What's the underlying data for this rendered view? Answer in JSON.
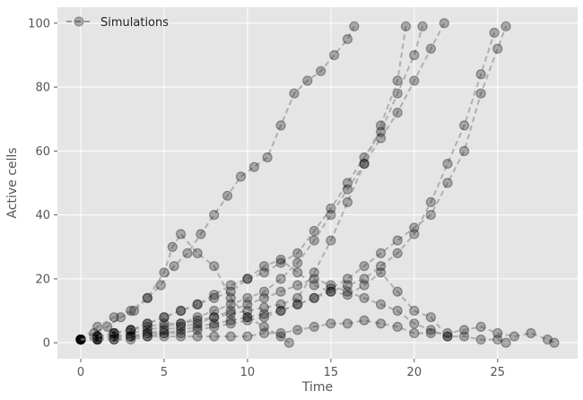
{
  "chart_data": {
    "type": "line",
    "xlabel": "Time",
    "ylabel": "Active cells",
    "xlim": [
      -1.4,
      29.8
    ],
    "ylim": [
      -5,
      105
    ],
    "xticks": [
      0,
      5,
      10,
      15,
      20,
      25
    ],
    "yticks": [
      0,
      20,
      40,
      60,
      80,
      100
    ],
    "grid": true,
    "legend": {
      "position": "top-left",
      "entries": [
        "Simulations"
      ]
    },
    "style": {
      "background": "#e5e5e5",
      "grid": "#ffffff",
      "marker": "#000000",
      "marker_opacity": 0.28,
      "line": "#999999"
    },
    "series": [
      {
        "name": "Simulations",
        "x": [
          0,
          0.8,
          1.6,
          2.4,
          3.2,
          4.0,
          4.8,
          5.6,
          6.4,
          7.2,
          8.0,
          8.8,
          9.6,
          10.4,
          11.2,
          12.0,
          12.8,
          13.6,
          14.4,
          15.2,
          16.0,
          16.4
        ],
        "y": [
          1,
          3,
          5,
          8,
          10,
          14,
          18,
          24,
          28,
          34,
          40,
          46,
          52,
          55,
          58,
          68,
          78,
          82,
          85,
          90,
          95,
          99
        ]
      },
      {
        "name": "",
        "x": [
          0,
          1,
          2,
          3,
          4,
          5,
          5.5,
          6,
          7,
          8,
          9,
          10,
          11,
          12,
          12.5
        ],
        "y": [
          1,
          5,
          8,
          10,
          14,
          22,
          30,
          34,
          28,
          24,
          14,
          8,
          5,
          2,
          0
        ]
      },
      {
        "name": "",
        "x": [
          0,
          1,
          2,
          3,
          4,
          5,
          6,
          7,
          8,
          9,
          10,
          11,
          12,
          13,
          14,
          15,
          16,
          17,
          18,
          19,
          20,
          20.5
        ],
        "y": [
          1,
          2,
          3,
          4,
          6,
          8,
          10,
          12,
          15,
          18,
          20,
          22,
          25,
          28,
          35,
          42,
          50,
          58,
          66,
          78,
          90,
          99
        ]
      },
      {
        "name": "",
        "x": [
          0,
          1,
          2,
          3,
          4,
          5,
          6,
          7,
          8,
          9,
          10,
          11,
          12,
          13,
          14,
          15,
          16,
          17,
          18,
          19,
          20,
          21,
          21.8
        ],
        "y": [
          1,
          2,
          2,
          3,
          4,
          5,
          6,
          8,
          10,
          12,
          14,
          16,
          20,
          25,
          32,
          40,
          48,
          56,
          64,
          72,
          82,
          92,
          100
        ]
      },
      {
        "name": "",
        "x": [
          0,
          1,
          2,
          3,
          4,
          5,
          6,
          7,
          8,
          9,
          10,
          11,
          12,
          13,
          14,
          15,
          16,
          17,
          18,
          19,
          20,
          21,
          22,
          23,
          24,
          25,
          25.5
        ],
        "y": [
          1,
          1,
          2,
          2,
          3,
          3,
          4,
          5,
          6,
          7,
          8,
          9,
          10,
          12,
          14,
          17,
          20,
          24,
          28,
          32,
          36,
          40,
          50,
          60,
          78,
          92,
          99
        ]
      },
      {
        "name": "",
        "x": [
          0,
          1,
          2,
          3,
          4,
          5,
          6,
          7,
          8,
          9,
          10,
          11,
          12,
          13,
          14,
          15,
          16,
          17,
          18,
          19,
          20,
          21,
          22,
          23,
          24,
          24.8
        ],
        "y": [
          1,
          1,
          1,
          2,
          2,
          3,
          3,
          4,
          5,
          6,
          7,
          8,
          10,
          12,
          14,
          16,
          18,
          20,
          24,
          28,
          34,
          44,
          56,
          68,
          84,
          97
        ]
      },
      {
        "name": "",
        "x": [
          0,
          1,
          2,
          3,
          4,
          5,
          6,
          7,
          8,
          9,
          10,
          11,
          12,
          13,
          14,
          15,
          16,
          17,
          18,
          19,
          19.5
        ],
        "y": [
          1,
          2,
          3,
          4,
          5,
          6,
          6,
          7,
          8,
          9,
          10,
          11,
          12,
          14,
          22,
          32,
          44,
          56,
          68,
          82,
          99
        ]
      },
      {
        "name": "",
        "x": [
          0,
          1,
          2,
          3,
          4,
          5,
          6,
          7,
          8,
          9,
          10,
          11,
          12,
          13,
          14,
          15,
          16,
          17,
          18,
          19,
          20,
          21,
          22,
          23,
          24,
          25,
          25.5
        ],
        "y": [
          1,
          1,
          2,
          2,
          3,
          4,
          5,
          6,
          8,
          10,
          12,
          14,
          16,
          18,
          20,
          18,
          16,
          14,
          12,
          10,
          6,
          4,
          2,
          2,
          1,
          1,
          0
        ]
      },
      {
        "name": "",
        "x": [
          0,
          1,
          2,
          3,
          4,
          5,
          6,
          7,
          8,
          9,
          10,
          11,
          12,
          13,
          14,
          15,
          16,
          17,
          18,
          19,
          20,
          21,
          22,
          23,
          24,
          25,
          26,
          27,
          28,
          28.4
        ],
        "y": [
          1,
          1,
          1,
          1,
          2,
          2,
          2,
          2,
          2,
          2,
          2,
          3,
          3,
          4,
          5,
          6,
          6,
          7,
          6,
          5,
          3,
          3,
          3,
          4,
          5,
          3,
          2,
          3,
          1,
          0
        ]
      },
      {
        "name": "",
        "x": [
          0,
          1,
          2,
          3,
          4,
          5,
          6,
          7,
          8,
          9,
          10,
          11,
          12,
          13,
          14,
          15,
          16,
          17,
          18,
          19,
          20,
          21,
          22
        ],
        "y": [
          1,
          2,
          3,
          4,
          6,
          8,
          10,
          12,
          14,
          16,
          20,
          24,
          26,
          22,
          18,
          16,
          15,
          18,
          22,
          16,
          10,
          8,
          2
        ]
      }
    ]
  }
}
